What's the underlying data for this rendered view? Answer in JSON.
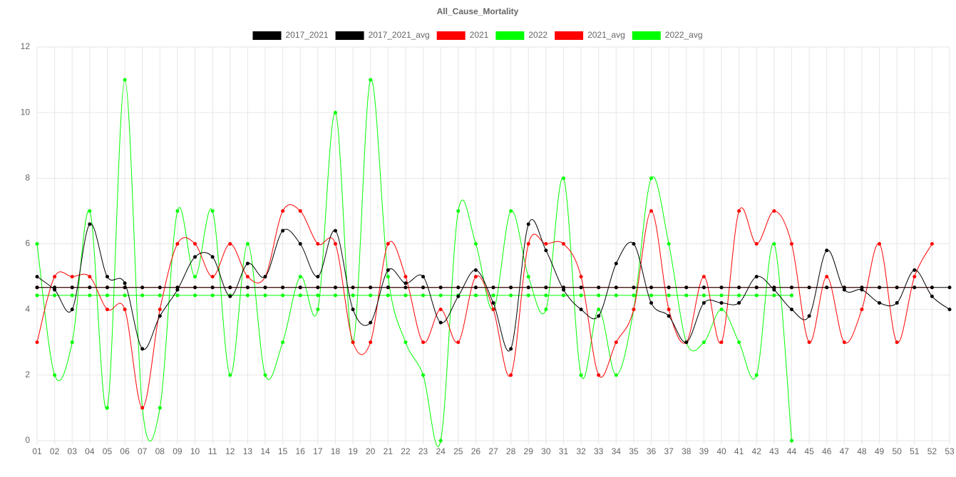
{
  "chart_data": {
    "type": "line",
    "title": "All_Cause_Mortality",
    "categories": [
      "01",
      "02",
      "03",
      "04",
      "05",
      "06",
      "07",
      "08",
      "09",
      "10",
      "11",
      "12",
      "13",
      "14",
      "15",
      "16",
      "17",
      "18",
      "19",
      "20",
      "21",
      "22",
      "23",
      "24",
      "25",
      "26",
      "27",
      "28",
      "29",
      "30",
      "31",
      "32",
      "33",
      "34",
      "35",
      "36",
      "37",
      "38",
      "39",
      "40",
      "41",
      "42",
      "43",
      "44",
      "45",
      "46",
      "47",
      "48",
      "49",
      "50",
      "51",
      "52",
      "53"
    ],
    "ylim": [
      0,
      12
    ],
    "yticks": [
      0,
      2,
      4,
      6,
      8,
      10,
      12
    ],
    "grid": true,
    "legend": "top",
    "series": [
      {
        "name": "2017_2021",
        "color": "#000000",
        "values": [
          5.0,
          4.6,
          4.0,
          6.6,
          5.0,
          4.8,
          2.8,
          3.8,
          4.6,
          5.6,
          5.6,
          4.4,
          5.4,
          5.0,
          6.4,
          6.0,
          5.0,
          6.4,
          4.0,
          3.6,
          5.2,
          4.8,
          5.0,
          3.6,
          4.4,
          5.2,
          4.2,
          2.8,
          6.6,
          5.8,
          4.6,
          4.0,
          3.8,
          5.4,
          6.0,
          4.2,
          3.8,
          3.0,
          4.2,
          4.2,
          4.2,
          5.0,
          4.6,
          4.0,
          3.8,
          5.8,
          4.6,
          4.6,
          4.2,
          4.2,
          5.2,
          4.4,
          4.0
        ]
      },
      {
        "name": "2017_2021_avg",
        "color": "#000000",
        "values": [
          4.67,
          4.67,
          4.67,
          4.67,
          4.67,
          4.67,
          4.67,
          4.67,
          4.67,
          4.67,
          4.67,
          4.67,
          4.67,
          4.67,
          4.67,
          4.67,
          4.67,
          4.67,
          4.67,
          4.67,
          4.67,
          4.67,
          4.67,
          4.67,
          4.67,
          4.67,
          4.67,
          4.67,
          4.67,
          4.67,
          4.67,
          4.67,
          4.67,
          4.67,
          4.67,
          4.67,
          4.67,
          4.67,
          4.67,
          4.67,
          4.67,
          4.67,
          4.67,
          4.67,
          4.67,
          4.67,
          4.67,
          4.67,
          4.67,
          4.67,
          4.67,
          4.67,
          4.67
        ]
      },
      {
        "name": "2021",
        "color": "#ff0000",
        "values": [
          3,
          5,
          5,
          5,
          4,
          4,
          1,
          4,
          6,
          6,
          5,
          6,
          5,
          5,
          7,
          7,
          6,
          6,
          3,
          3,
          6,
          5,
          3,
          4,
          3,
          5,
          4,
          2,
          6,
          6,
          6,
          5,
          2,
          3,
          4,
          7,
          4,
          3,
          5,
          3,
          7,
          6,
          7,
          6,
          3,
          5,
          3,
          4,
          6,
          3,
          5,
          6,
          null
        ]
      },
      {
        "name": "2022",
        "color": "#00ff00",
        "values": [
          6,
          2,
          3,
          7,
          1,
          11,
          1,
          1,
          7,
          5,
          7,
          2,
          6,
          2,
          3,
          5,
          4,
          10,
          3,
          11,
          5,
          3,
          2,
          0,
          7,
          6,
          4,
          7,
          5,
          4,
          8,
          2,
          4,
          2,
          4,
          8,
          6,
          3,
          3,
          4,
          3,
          2,
          6,
          0,
          null,
          null,
          null,
          null,
          null,
          null,
          null,
          null,
          null
        ]
      },
      {
        "name": "2021_avg",
        "color": "#ff0000",
        "values": [
          4.67,
          4.67,
          4.67,
          4.67,
          4.67,
          4.67,
          4.67,
          4.67,
          4.67,
          4.67,
          4.67,
          4.67,
          4.67,
          4.67,
          4.67,
          4.67,
          4.67,
          4.67,
          4.67,
          4.67,
          4.67,
          4.67,
          4.67,
          4.67,
          4.67,
          4.67,
          4.67,
          4.67,
          4.67,
          4.67,
          4.67,
          4.67,
          4.67,
          4.67,
          4.67,
          4.67,
          4.67,
          4.67,
          4.67,
          4.67,
          4.67,
          4.67,
          4.67,
          4.67,
          4.67,
          4.67,
          4.67,
          4.67,
          4.67,
          4.67,
          4.67,
          4.67,
          null
        ]
      },
      {
        "name": "2022_avg",
        "color": "#00ff00",
        "values": [
          4.43,
          4.43,
          4.43,
          4.43,
          4.43,
          4.43,
          4.43,
          4.43,
          4.43,
          4.43,
          4.43,
          4.43,
          4.43,
          4.43,
          4.43,
          4.43,
          4.43,
          4.43,
          4.43,
          4.43,
          4.43,
          4.43,
          4.43,
          4.43,
          4.43,
          4.43,
          4.43,
          4.43,
          4.43,
          4.43,
          4.43,
          4.43,
          4.43,
          4.43,
          4.43,
          4.43,
          4.43,
          4.43,
          4.43,
          4.43,
          4.43,
          4.43,
          4.43,
          4.43,
          null,
          null,
          null,
          null,
          null,
          null,
          null,
          null,
          null
        ]
      }
    ]
  }
}
